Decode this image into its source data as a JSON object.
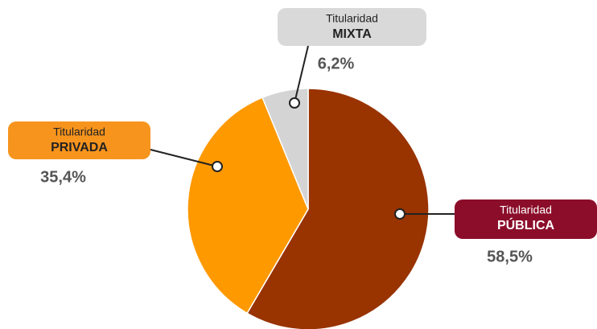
{
  "chart_data": {
    "type": "pie",
    "label_prefix": "Titularidad",
    "categories": [
      "PÚBLICA",
      "PRIVADA",
      "MIXTA"
    ],
    "values": [
      58.5,
      35.4,
      6.2
    ],
    "value_labels": [
      "58,5%",
      "35,4%",
      "6,2%"
    ],
    "colors": [
      "#993300",
      "#ff9900",
      "#d4d4d4"
    ],
    "label_colors": [
      "#8b0d2a",
      "#f7941d",
      "#d9d9d9"
    ],
    "label_text_colors": [
      "#ffffff",
      "#222222",
      "#222222"
    ]
  }
}
